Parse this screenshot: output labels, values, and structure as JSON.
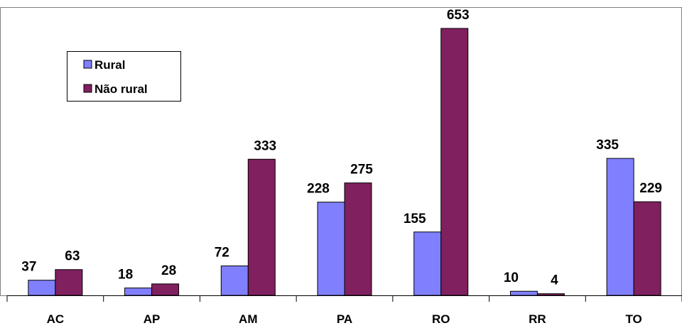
{
  "chart_data": {
    "type": "bar",
    "categories": [
      "AC",
      "AP",
      "AM",
      "PA",
      "RO",
      "RR",
      "TO"
    ],
    "series": [
      {
        "name": "Rural",
        "color": "#8080ff",
        "values": [
          37,
          18,
          72,
          228,
          155,
          10,
          335
        ]
      },
      {
        "name": "Não rural",
        "color": "#80205f",
        "values": [
          63,
          28,
          333,
          275,
          653,
          4,
          229
        ]
      }
    ],
    "ylim": [
      0,
      660
    ],
    "grid": false,
    "legend_position": "top-left",
    "data_labels": true
  }
}
